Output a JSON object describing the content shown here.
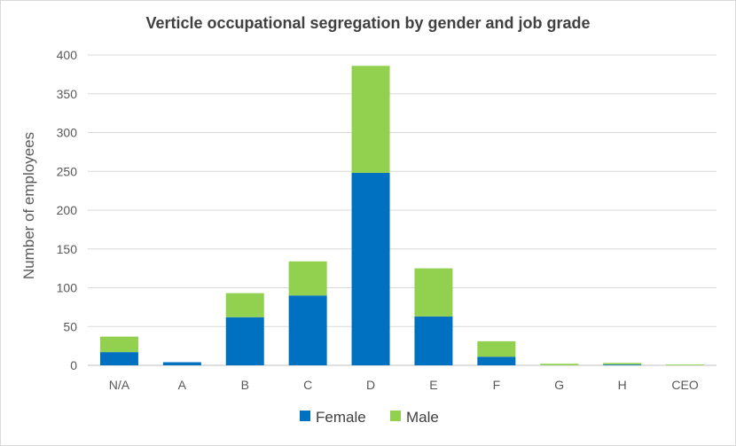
{
  "chart_data": {
    "type": "bar",
    "stacked": true,
    "title": "Verticle occupational segregation by gender and job grade",
    "xlabel": "",
    "ylabel": "Number of employees",
    "categories": [
      "N/A",
      "A",
      "B",
      "C",
      "D",
      "E",
      "F",
      "G",
      "H",
      "CEO"
    ],
    "series": [
      {
        "name": "Female",
        "color": "#0070C0",
        "values": [
          17,
          4,
          62,
          90,
          248,
          63,
          11,
          0,
          1,
          0
        ]
      },
      {
        "name": "Male",
        "color": "#92D050",
        "values": [
          20,
          0,
          31,
          44,
          138,
          62,
          20,
          2,
          2,
          1
        ]
      }
    ],
    "ylim": [
      0,
      400
    ],
    "yticks": [
      0,
      50,
      100,
      150,
      200,
      250,
      300,
      350,
      400
    ],
    "grid": true,
    "legend_position": "bottom"
  }
}
